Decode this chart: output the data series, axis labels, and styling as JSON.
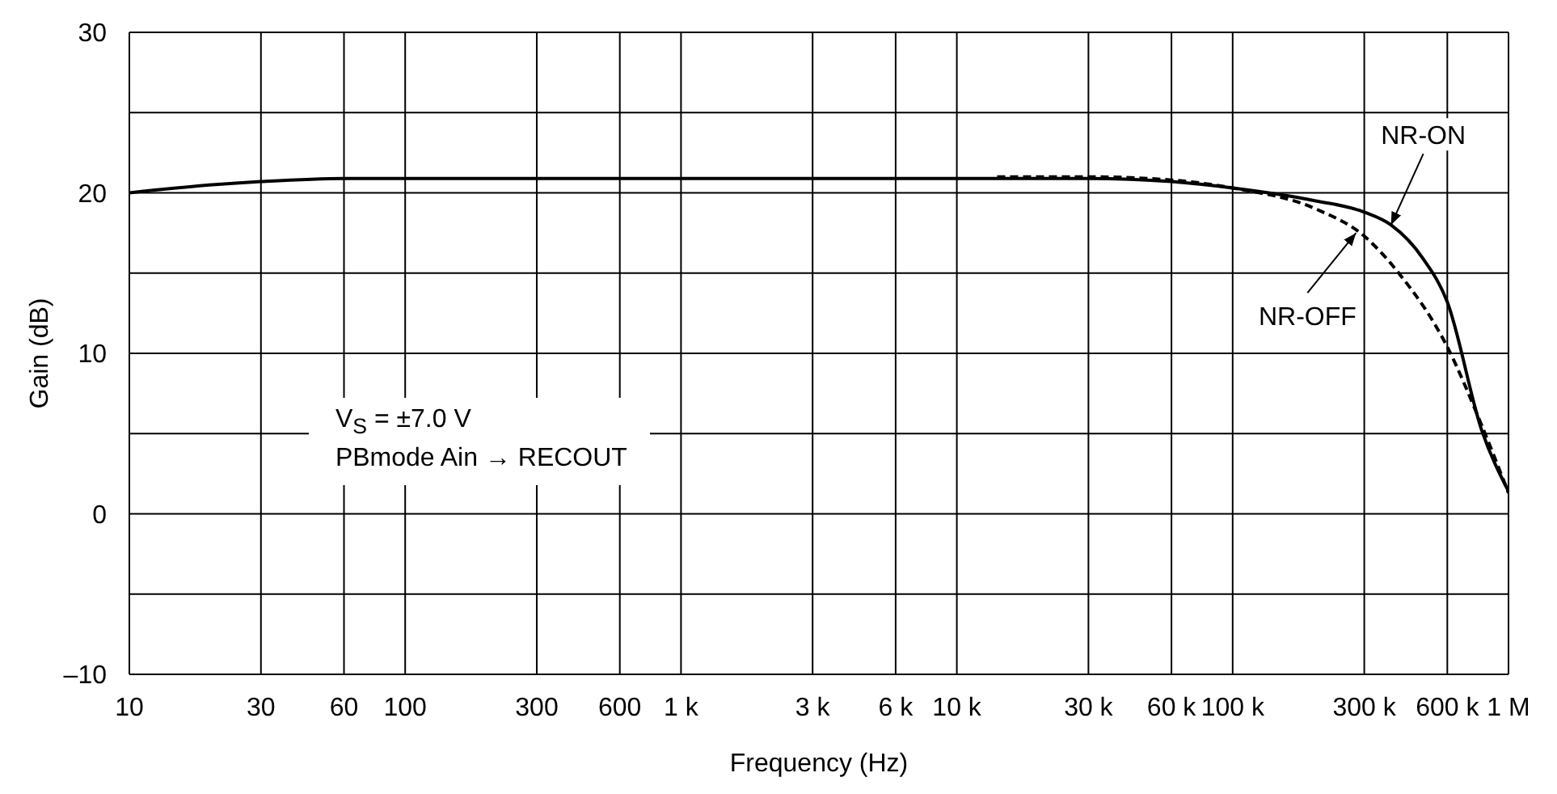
{
  "chart_data": {
    "type": "line",
    "xlabel": "Frequency  (Hz)",
    "ylabel": "Gain  (dB)",
    "log": "x",
    "grid": true,
    "marker": "none",
    "xlim": [
      10,
      1000000
    ],
    "xticks": [
      10,
      30,
      60,
      100,
      300,
      600,
      {
        "value": 1000,
        "label": "1 k"
      },
      {
        "value": 3000,
        "label": "3 k"
      },
      {
        "value": 6000,
        "label": "6 k"
      },
      {
        "value": 10000,
        "label": "10 k"
      },
      {
        "value": 30000,
        "label": "30 k"
      },
      {
        "value": 60000,
        "label": "60 k"
      },
      {
        "value": 100000,
        "label": "100 k"
      },
      {
        "value": 300000,
        "label": "300 k"
      },
      {
        "value": 600000,
        "label": "600 k"
      },
      {
        "value": 1000000,
        "label": "1 M"
      }
    ],
    "ylim": [
      -10,
      30
    ],
    "yticks": [
      {
        "value": -10,
        "label": "–10"
      },
      {
        "value": -5,
        "label": null
      },
      0,
      {
        "value": 5,
        "label": null
      },
      10,
      {
        "value": 15,
        "label": null
      },
      20,
      {
        "value": 25,
        "label": null
      },
      30
    ],
    "series": [
      {
        "color": "#000000",
        "line_style": "solid",
        "x": [
          10,
          20,
          30,
          60,
          100,
          1000,
          10000,
          30000,
          60000,
          100000,
          200000,
          300000,
          375000,
          490000,
          600000,
          800000,
          1000000
        ],
        "values": [
          20,
          20.5,
          20.7,
          20.9,
          20.9,
          20.9,
          20.9,
          20.9,
          20.7,
          20.3,
          19.5,
          18.8,
          18.0,
          15.9,
          13.2,
          5.2,
          1.4
        ]
      },
      {
        "color": "#000000",
        "line_style": "dashed",
        "x": [
          14000,
          30000,
          60000,
          100000,
          200000,
          300000,
          400000,
          600000,
          800000,
          1000000
        ],
        "values": [
          21.0,
          21.0,
          20.8,
          20.3,
          19.0,
          17.3,
          15.0,
          10.4,
          5.5,
          1.3
        ]
      }
    ],
    "annotations": [
      {
        "text": "NR-ON",
        "x": 375000,
        "y": 18
      },
      {
        "text": "NR-OFF",
        "x": 280000,
        "y": 17.5
      },
      "V$_{S}$ = ±7.0 V",
      "PBmode Ain → RECOUT"
    ]
  }
}
